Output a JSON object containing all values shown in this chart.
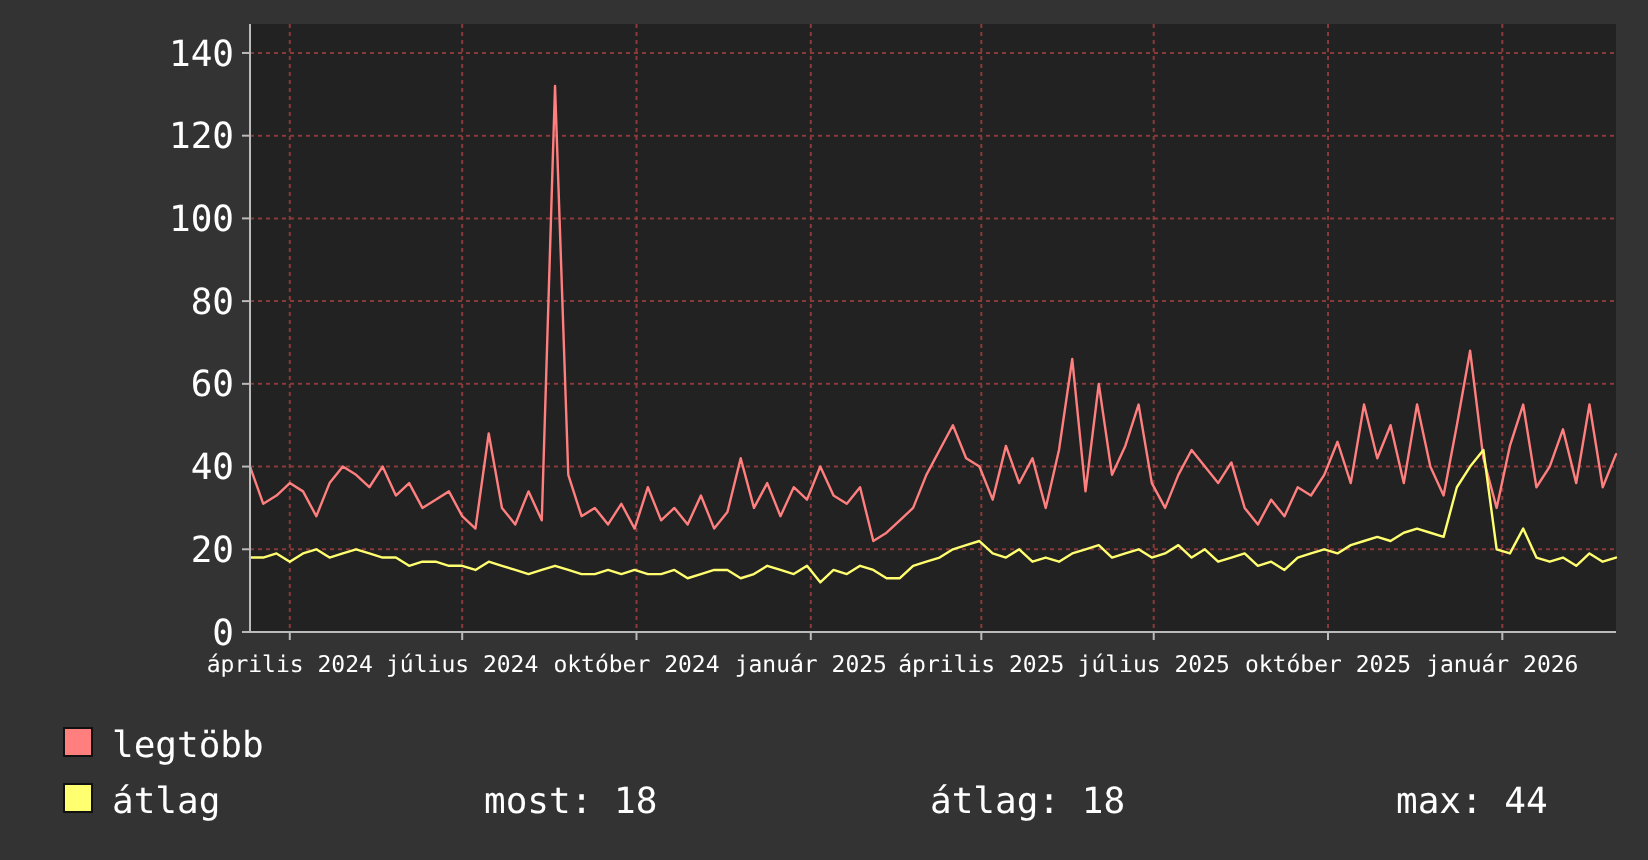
{
  "chart_data": {
    "type": "line",
    "x": [
      "2024-03-11",
      "2024-03-18",
      "2024-03-25",
      "2024-04-01",
      "2024-04-08",
      "2024-04-15",
      "2024-04-22",
      "2024-04-29",
      "2024-05-06",
      "2024-05-13",
      "2024-05-20",
      "2024-05-27",
      "2024-06-03",
      "2024-06-10",
      "2024-06-17",
      "2024-06-24",
      "2024-07-01",
      "2024-07-08",
      "2024-07-15",
      "2024-07-22",
      "2024-07-29",
      "2024-08-05",
      "2024-08-12",
      "2024-08-19",
      "2024-08-26",
      "2024-09-02",
      "2024-09-09",
      "2024-09-16",
      "2024-09-23",
      "2024-09-30",
      "2024-10-07",
      "2024-10-14",
      "2024-10-21",
      "2024-10-28",
      "2024-11-04",
      "2024-11-11",
      "2024-11-18",
      "2024-11-25",
      "2024-12-02",
      "2024-12-09",
      "2024-12-16",
      "2024-12-23",
      "2024-12-30",
      "2025-01-06",
      "2025-01-13",
      "2025-01-20",
      "2025-01-27",
      "2025-02-03",
      "2025-02-10",
      "2025-02-17",
      "2025-02-24",
      "2025-03-03",
      "2025-03-10",
      "2025-03-17",
      "2025-03-24",
      "2025-03-31",
      "2025-04-07",
      "2025-04-14",
      "2025-04-21",
      "2025-04-28",
      "2025-05-05",
      "2025-05-12",
      "2025-05-19",
      "2025-05-26",
      "2025-06-02",
      "2025-06-09",
      "2025-06-16",
      "2025-06-23",
      "2025-06-30",
      "2025-07-07",
      "2025-07-14",
      "2025-07-21",
      "2025-07-28",
      "2025-08-04",
      "2025-08-11",
      "2025-08-18",
      "2025-08-25",
      "2025-09-01",
      "2025-09-08",
      "2025-09-15",
      "2025-09-22",
      "2025-09-29",
      "2025-10-06",
      "2025-10-13",
      "2025-10-20",
      "2025-10-27",
      "2025-11-03",
      "2025-11-10",
      "2025-11-17",
      "2025-11-24",
      "2025-12-01",
      "2025-12-08",
      "2025-12-15",
      "2025-12-22",
      "2025-12-29",
      "2026-01-05",
      "2026-01-12",
      "2026-01-19",
      "2026-01-26",
      "2026-02-02",
      "2026-02-09",
      "2026-02-16",
      "2026-02-23",
      "2026-03-02"
    ],
    "series": [
      {
        "name": "legtöbb",
        "color": "#ff7f7f",
        "values": [
          40,
          31,
          33,
          36,
          34,
          28,
          36,
          40,
          38,
          35,
          40,
          33,
          36,
          30,
          32,
          34,
          28,
          25,
          48,
          30,
          26,
          34,
          27,
          132,
          38,
          28,
          30,
          26,
          31,
          25,
          35,
          27,
          30,
          26,
          33,
          25,
          29,
          42,
          30,
          36,
          28,
          35,
          32,
          40,
          33,
          31,
          35,
          22,
          24,
          27,
          30,
          38,
          44,
          50,
          42,
          40,
          32,
          45,
          36,
          42,
          30,
          44,
          66,
          34,
          60,
          38,
          45,
          55,
          36,
          30,
          38,
          44,
          40,
          36,
          41,
          30,
          26,
          32,
          28,
          35,
          33,
          38,
          46,
          36,
          55,
          42,
          50,
          36,
          55,
          40,
          33,
          50,
          68,
          42,
          30,
          45,
          55,
          35,
          40,
          49,
          36,
          55,
          35,
          43
        ]
      },
      {
        "name": "átlag",
        "color": "#ffff70",
        "values": [
          18,
          18,
          19,
          17,
          19,
          20,
          18,
          19,
          20,
          19,
          18,
          18,
          16,
          17,
          17,
          16,
          16,
          15,
          17,
          16,
          15,
          14,
          15,
          16,
          15,
          14,
          14,
          15,
          14,
          15,
          14,
          14,
          15,
          13,
          14,
          15,
          15,
          13,
          14,
          16,
          15,
          14,
          16,
          12,
          15,
          14,
          16,
          15,
          13,
          13,
          16,
          17,
          18,
          20,
          21,
          22,
          19,
          18,
          20,
          17,
          18,
          17,
          19,
          20,
          21,
          18,
          19,
          20,
          18,
          19,
          21,
          18,
          20,
          17,
          18,
          19,
          16,
          17,
          15,
          18,
          19,
          20,
          19,
          21,
          22,
          23,
          22,
          24,
          25,
          24,
          23,
          35,
          40,
          44,
          20,
          19,
          25,
          18,
          17,
          18,
          16,
          19,
          17,
          18
        ]
      }
    ],
    "xlim": [
      "2024-03-11",
      "2026-03-02"
    ],
    "xticks": [
      {
        "value": "2024-04-01",
        "label": "április 2024"
      },
      {
        "value": "2024-07-01",
        "label": "július 2024"
      },
      {
        "value": "2024-10-01",
        "label": "október 2024"
      },
      {
        "value": "2025-01-01",
        "label": "január 2025"
      },
      {
        "value": "2025-04-01",
        "label": "április 2025"
      },
      {
        "value": "2025-07-01",
        "label": "július 2025"
      },
      {
        "value": "2025-10-01",
        "label": "október 2025"
      },
      {
        "value": "2026-01-01",
        "label": "január 2026"
      }
    ],
    "ylim": [
      0,
      147
    ],
    "yticks": [
      0,
      20,
      40,
      60,
      80,
      100,
      120,
      140
    ],
    "grid": true,
    "legend": "bottom",
    "annotations": [
      "most: 18",
      "átlag: 18",
      "max: 44"
    ]
  }
}
